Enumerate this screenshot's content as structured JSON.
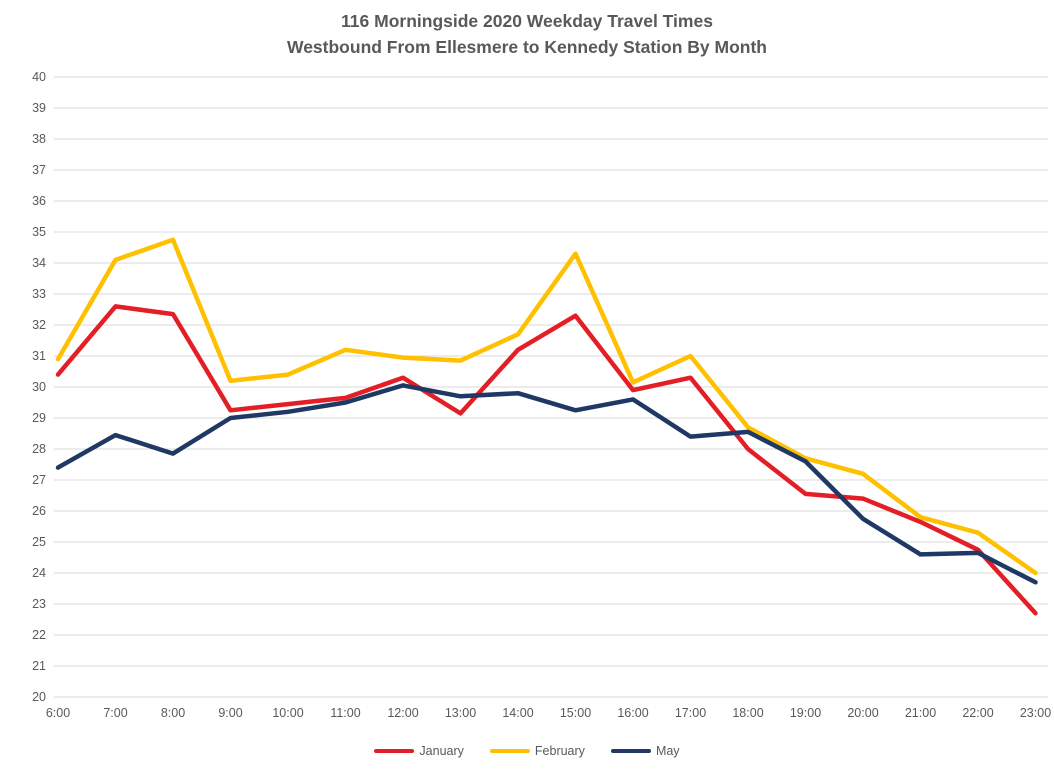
{
  "title": {
    "line1": "116 Morningside 2020 Weekday Travel Times",
    "line2": "Westbound From Ellesmere to Kennedy Station By Month"
  },
  "colors": {
    "january": "#e31e26",
    "february": "#ffc000",
    "may": "#1f3864",
    "gridline": "#d9d9d9",
    "axis_text": "#595959",
    "title_text": "#595959",
    "background": "#ffffff"
  },
  "chart_data": {
    "type": "line",
    "title": "116 Morningside 2020 Weekday Travel Times Westbound From Ellesmere to Kennedy Station By Month",
    "xlabel": "",
    "ylabel": "",
    "categories": [
      "6:00",
      "7:00",
      "8:00",
      "9:00",
      "10:00",
      "11:00",
      "12:00",
      "13:00",
      "14:00",
      "15:00",
      "16:00",
      "17:00",
      "18:00",
      "19:00",
      "20:00",
      "21:00",
      "22:00",
      "23:00"
    ],
    "series": [
      {
        "name": "January",
        "color": "#e31e26",
        "values": [
          30.4,
          32.6,
          32.35,
          29.25,
          29.45,
          29.65,
          30.3,
          29.15,
          31.2,
          32.3,
          29.9,
          30.3,
          28.0,
          26.55,
          26.4,
          25.65,
          24.75,
          22.7
        ]
      },
      {
        "name": "February",
        "color": "#ffc000",
        "values": [
          30.9,
          34.1,
          34.75,
          30.2,
          30.4,
          31.2,
          30.95,
          30.85,
          31.7,
          34.3,
          30.15,
          31.0,
          28.7,
          27.7,
          27.2,
          25.8,
          25.3,
          24.0
        ]
      },
      {
        "name": "May",
        "color": "#1f3864",
        "values": [
          27.4,
          28.45,
          27.85,
          29.0,
          29.2,
          29.5,
          30.05,
          29.7,
          29.8,
          29.25,
          29.6,
          28.4,
          28.55,
          27.6,
          25.75,
          24.6,
          24.65,
          23.7
        ]
      }
    ],
    "ylim": [
      20,
      40
    ],
    "ytick_step": 1,
    "grid": "horizontal",
    "legend_position": "bottom"
  }
}
